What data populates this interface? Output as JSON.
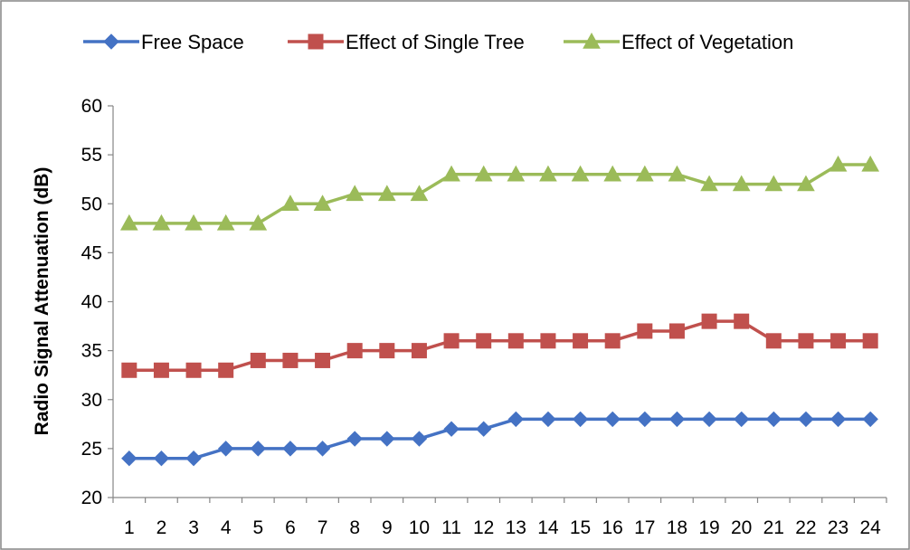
{
  "chart_data": {
    "type": "line",
    "title": "",
    "xlabel": "",
    "ylabel": "Radio Signal Attenuation (dB)",
    "ylim": [
      20,
      60
    ],
    "yticks": [
      "20",
      "25",
      "30",
      "35",
      "40",
      "45",
      "50",
      "55",
      "60"
    ],
    "categories": [
      "1",
      "2",
      "3",
      "4",
      "5",
      "6",
      "7",
      "8",
      "9",
      "10",
      "11",
      "12",
      "13",
      "14",
      "15",
      "16",
      "17",
      "18",
      "19",
      "20",
      "21",
      "22",
      "23",
      "24"
    ],
    "legend_position": "top",
    "series": [
      {
        "name": "Free Space",
        "color": "#4472C4",
        "marker": "diamond",
        "values": [
          24,
          24,
          24,
          25,
          25,
          25,
          25,
          26,
          26,
          26,
          27,
          27,
          28,
          28,
          28,
          28,
          28,
          28,
          28,
          28,
          28,
          28,
          28,
          28
        ]
      },
      {
        "name": "Effect of Single Tree",
        "color": "#C0504D",
        "marker": "square",
        "values": [
          33,
          33,
          33,
          33,
          34,
          34,
          34,
          35,
          35,
          35,
          36,
          36,
          36,
          36,
          36,
          36,
          37,
          37,
          38,
          38,
          36,
          36,
          36,
          36
        ]
      },
      {
        "name": "Effect of Vegetation",
        "color": "#9BBB59",
        "marker": "triangle",
        "values": [
          48,
          48,
          48,
          48,
          48,
          50,
          50,
          51,
          51,
          51,
          53,
          53,
          53,
          53,
          53,
          53,
          53,
          53,
          52,
          52,
          52,
          52,
          54,
          54
        ]
      }
    ]
  }
}
